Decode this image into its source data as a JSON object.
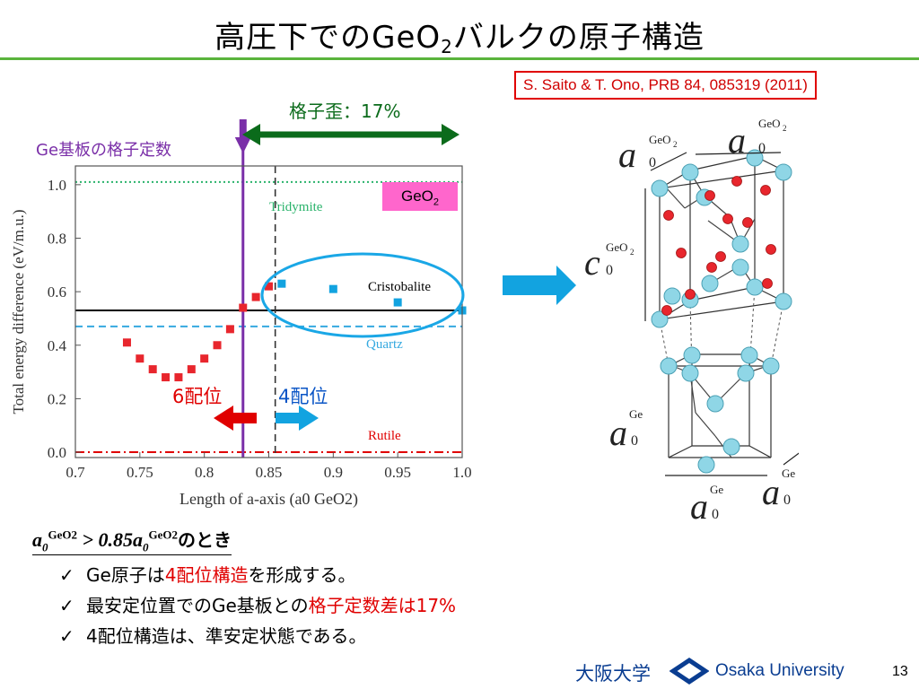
{
  "slide": {
    "title_main": "高圧下でのGeO",
    "title_sub": "2",
    "title_rest": "バルクの原子構造",
    "citation": "S. Saito & T. Ono, PRB 84, 085319 (2011)",
    "page_number": "13"
  },
  "annotations": {
    "substrate_lattice": "Ge基板の格子定数",
    "strain": "格子歪：17%",
    "six_fold": "6配位",
    "four_fold": "4配位",
    "geo2_label_main": "GeO",
    "geo2_label_sub": "2"
  },
  "structure_labels": {
    "a0": "a",
    "c0": "c",
    "zero": "0",
    "geo2": "GeO",
    "geo2_sub": "2",
    "ge": "Ge"
  },
  "condition": {
    "lhs": "a",
    "sub0": "0",
    "sup": "GeO2",
    "op": " > 0.85",
    "rhs": "a",
    "suffix": "のとき"
  },
  "bullets": {
    "check": "✓",
    "b1_pre": "Ge原子は",
    "b1_red": "4配位構造",
    "b1_post": "を形成する。",
    "b2_pre": "最安定位置でのGe基板との",
    "b2_red": "格子定数差は17%",
    "b3": "4配位構造は、準安定状態である。"
  },
  "footer": {
    "university_jp": "大阪大学",
    "university_en": "Osaka University"
  },
  "chart_data": {
    "type": "scatter",
    "xlabel": "Length of a-axis (a0 GeO2)",
    "ylabel": "Total energy difference (eV/m.u.)",
    "xlim": [
      0.7,
      1.0
    ],
    "ylim": [
      -0.02,
      1.07
    ],
    "xticks": [
      "0.7",
      "0.75",
      "0.8",
      "0.85",
      "0.9",
      "0.95",
      "1.0"
    ],
    "yticks": [
      "0.0",
      "0.2",
      "0.4",
      "0.6",
      "0.8",
      "1.0"
    ],
    "series": [
      {
        "name": "six-fold (red)",
        "color": "#e8262d",
        "x": [
          0.74,
          0.75,
          0.76,
          0.77,
          0.78,
          0.79,
          0.8,
          0.81,
          0.82,
          0.83,
          0.84,
          0.85
        ],
        "y": [
          0.41,
          0.35,
          0.31,
          0.28,
          0.28,
          0.31,
          0.35,
          0.4,
          0.46,
          0.54,
          0.58,
          0.62
        ]
      },
      {
        "name": "four-fold (blue)",
        "color": "#12a3e0",
        "x": [
          0.86,
          0.9,
          0.95,
          1.0
        ],
        "y": [
          0.63,
          0.61,
          0.56,
          0.53
        ]
      }
    ],
    "reference_lines": [
      {
        "label": "Tridymite",
        "y": 1.01,
        "color": "#2ab36b",
        "style": "dotted"
      },
      {
        "label": "Cristobalite",
        "y": 0.53,
        "color": "#000000",
        "style": "solid"
      },
      {
        "label": "Quartz",
        "y": 0.47,
        "color": "#35a9e0",
        "style": "dashed"
      },
      {
        "label": "Rutile",
        "y": 0.0,
        "color": "#e00000",
        "style": "dashdot"
      }
    ],
    "vertical_lines": [
      {
        "x": 0.855,
        "color": "#333333",
        "style": "dashed"
      },
      {
        "x": 0.83,
        "color": "#7a2fa8",
        "style": "solid"
      }
    ]
  }
}
